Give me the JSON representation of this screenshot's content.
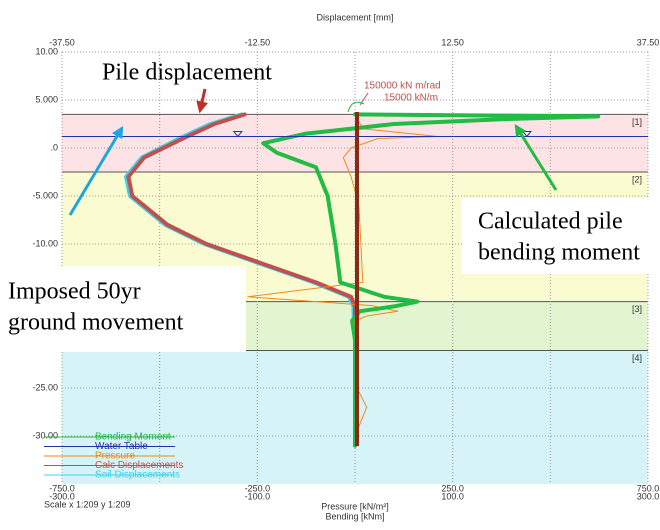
{
  "chart_data": {
    "type": "profile",
    "x_title": "Displacement [mm]",
    "x2_title": "Pressure [kN/m²]",
    "x3_title": "Bending [kNm]",
    "scale_note": "Scale x 1:209  y 1:209",
    "xlim": [
      -37.5,
      37.5
    ],
    "xticks": [
      {
        "value": -37.5,
        "label": "-37.50"
      },
      {
        "value": -12.5,
        "label": "-12.50"
      },
      {
        "value": 12.5,
        "label": "12.50"
      },
      {
        "value": 37.5,
        "label": "37.50"
      }
    ],
    "x2lim": [
      -750,
      750
    ],
    "x2ticks": [
      {
        "value": -750,
        "label": "-750.0"
      },
      {
        "value": -250,
        "label": "-250.0"
      },
      {
        "value": 250,
        "label": "250.0"
      },
      {
        "value": 750,
        "label": "750.0"
      }
    ],
    "x3lim": [
      -300,
      300
    ],
    "x3ticks": [
      {
        "value": -300,
        "label": "-300.0"
      },
      {
        "value": -100,
        "label": "-100.0"
      },
      {
        "value": 100,
        "label": "100.0"
      },
      {
        "value": 300,
        "label": "300.0"
      }
    ],
    "ylim": [
      -35,
      10
    ],
    "yticks": [
      {
        "value": 10,
        "label": "10.00"
      },
      {
        "value": 5,
        "label": "5.000"
      },
      {
        "value": 0,
        "label": ".0"
      },
      {
        "value": -5,
        "label": "-5.000"
      },
      {
        "value": -10,
        "label": "-10.00"
      },
      {
        "value": -25,
        "label": "-25.00"
      },
      {
        "value": -30,
        "label": "-30.00"
      }
    ],
    "layers": [
      {
        "label": "[1]",
        "top": 3.5,
        "bottom": -2.5,
        "color": "#fde3e6"
      },
      {
        "label": "[2]",
        "top": -2.5,
        "bottom": -16,
        "color": "#fbfbd2"
      },
      {
        "label": "[3]",
        "top": -16,
        "bottom": -21.1,
        "color": "#e3f5d0"
      },
      {
        "label": "[4]",
        "top": -21.1,
        "bottom": -35,
        "color": "#d6f3f8"
      }
    ],
    "springs": [
      "150000  kN m/rad",
      "15000  kN/m"
    ],
    "series": [
      {
        "name": "Bending Moment",
        "color": "#22bb44",
        "axis": "x3",
        "width": 4,
        "elevations": [
          3.5,
          3.4,
          3.3,
          3.0,
          2.5,
          1.5,
          0.5,
          -0.5,
          -2,
          -5,
          -10,
          -14,
          -15.5,
          -16,
          -16.5,
          -17,
          -18,
          -20,
          -25,
          -30,
          -31
        ],
        "values": [
          0,
          120,
          249,
          150,
          40,
          -50,
          -94,
          -80,
          -40,
          -28,
          -20,
          -15,
          30,
          64,
          40,
          5,
          -3,
          0,
          0,
          0,
          0
        ]
      },
      {
        "name": "Water Table",
        "color": "#2233aa",
        "level": 1.2
      },
      {
        "name": "Pressure",
        "color": "#f08a1e",
        "axis": "x2",
        "width": 1,
        "elevations": [
          3.5,
          2,
          1.2,
          1,
          0,
          -1,
          -3,
          -6,
          -10,
          -14,
          -15.5,
          -16,
          -16.4,
          -17,
          -17.5,
          -18,
          -20,
          -25,
          -27,
          -30,
          -31
        ],
        "values": [
          0,
          20,
          212,
          60,
          -10,
          -30,
          -10,
          10,
          15,
          20,
          -274,
          -100,
          40,
          110,
          30,
          0,
          0,
          5,
          30,
          0,
          0
        ]
      },
      {
        "name": "Calc Displacements",
        "color": "#c0504d",
        "axis": "x",
        "width": 4,
        "elevations": [
          3.5,
          2.5,
          1,
          -1,
          -3,
          -5,
          -8,
          -10,
          -12,
          -14,
          -15.5,
          -16.5,
          -17,
          -20,
          -25,
          -30,
          -31
        ],
        "values": [
          -14.1,
          -18,
          -22,
          -27,
          -29,
          -28.5,
          -24,
          -19,
          -12,
          -5,
          -0.5,
          0,
          0,
          0,
          0,
          0,
          0
        ]
      },
      {
        "name": "Soil Displacements",
        "color": "#3fd0e8",
        "axis": "x",
        "width": 4,
        "elevations": [
          3.5,
          2.5,
          1,
          -1,
          -3,
          -5,
          -8,
          -10,
          -12,
          -14,
          -15.5,
          -16.5,
          -17,
          -20,
          -25,
          -30,
          -31
        ],
        "values": [
          -14.5,
          -18.5,
          -22.5,
          -27.3,
          -29.3,
          -28.8,
          -24.3,
          -19.3,
          -12.3,
          -5.3,
          -0.8,
          -0.2,
          -0.2,
          0,
          0,
          0,
          0
        ]
      }
    ],
    "annotations": [
      "Pile displacement",
      "Calculated pile",
      "bending moment",
      "Imposed 50yr",
      "ground movement"
    ]
  }
}
